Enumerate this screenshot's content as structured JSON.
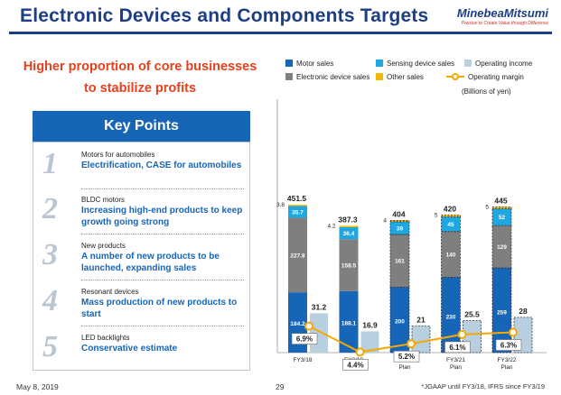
{
  "header": {
    "title": "Electronic Devices and Components Targets",
    "logo_name": "MinebeaMitsumi",
    "logo_tagline": "Passion to Create Value through Difference"
  },
  "headline": {
    "line1": "Higher proportion of core businesses",
    "line2": "to stabilize profits"
  },
  "key_points": {
    "title": "Key Points",
    "items": [
      {
        "number": "1",
        "subtitle": "Motors for automobiles",
        "text": "Electrification, CASE for automobiles"
      },
      {
        "number": "2",
        "subtitle": "BLDC motors",
        "text": "Increasing high-end products to keep growth going strong"
      },
      {
        "number": "3",
        "subtitle": "New products",
        "text": "A number of new products to be launched, expanding sales"
      },
      {
        "number": "4",
        "subtitle": "Resonant devices",
        "text": "Mass production of new products to start"
      },
      {
        "number": "5",
        "subtitle": "LED backlights",
        "text": "Conservative estimate"
      }
    ]
  },
  "legend": {
    "motor": "Motor sales",
    "sensing": "Sensing device sales",
    "operating_income": "Operating income",
    "electronic": "Electronic device sales",
    "other": "Other sales",
    "margin": "Operating margin"
  },
  "unit_label": "(Billions of yen)",
  "colors": {
    "motor": "#1765b6",
    "sensing": "#1ea7e1",
    "electronic": "#7f7f7f",
    "other": "#f5b800",
    "operating_income": "#b8cfe0",
    "margin": "#f5a800",
    "title": "#1d3d87",
    "headline": "#e8401c"
  },
  "chart_data": {
    "type": "bar",
    "categories": [
      "FY3/18",
      "FY3/19",
      "FY3/20 Plan",
      "FY3/21 Plan",
      "FY3/22 Plan"
    ],
    "category_lines": [
      [
        "FY3/18"
      ],
      [
        "FY3/19"
      ],
      [
        "FY3/20",
        "Plan"
      ],
      [
        "FY3/21",
        "Plan"
      ],
      [
        "FY3/22",
        "Plan"
      ]
    ],
    "stacked_series": [
      {
        "name": "Motor sales",
        "values": [
          184.2,
          188.1,
          200,
          230,
          259
        ]
      },
      {
        "name": "Electronic device sales",
        "values": [
          227.8,
          158.5,
          161,
          140,
          129
        ]
      },
      {
        "name": "Sensing device sales",
        "values": [
          35.7,
          36.4,
          39,
          45,
          52
        ]
      },
      {
        "name": "Other sales",
        "values": [
          3.8,
          4.2,
          4,
          5,
          5
        ]
      }
    ],
    "totals": [
      451.5,
      387.3,
      404,
      420,
      445
    ],
    "totals_labels": [
      "451.5",
      "387.3",
      "404",
      "420",
      "445"
    ],
    "value_labels": {
      "motor": [
        "184.2",
        "188.1",
        "200",
        "230",
        "259"
      ],
      "electronic": [
        "227.8",
        "158.5",
        "161",
        "140",
        "129"
      ],
      "sensing": [
        "35.7",
        "36.4",
        "39",
        "45",
        "52"
      ],
      "other": [
        "3.8",
        "4.2",
        "4",
        "5",
        "5"
      ]
    },
    "operating_income": [
      31.2,
      16.9,
      21,
      25.5,
      28
    ],
    "operating_income_labels": [
      "31.2",
      "16.9",
      "21",
      "25.5",
      "28"
    ],
    "operating_margin": [
      6.9,
      4.4,
      5.2,
      6.1,
      6.3
    ],
    "operating_margin_labels": [
      "6.9%",
      "4.4%",
      "5.2%",
      "6.1%",
      "6.3%"
    ],
    "plan_flags": [
      false,
      false,
      true,
      true,
      true
    ],
    "ylabel": "Billions of yen"
  },
  "footer": {
    "date": "May 8, 2019",
    "page": "29",
    "note": "*JGAAP until FY3/18, IFRS since FY3/19"
  }
}
